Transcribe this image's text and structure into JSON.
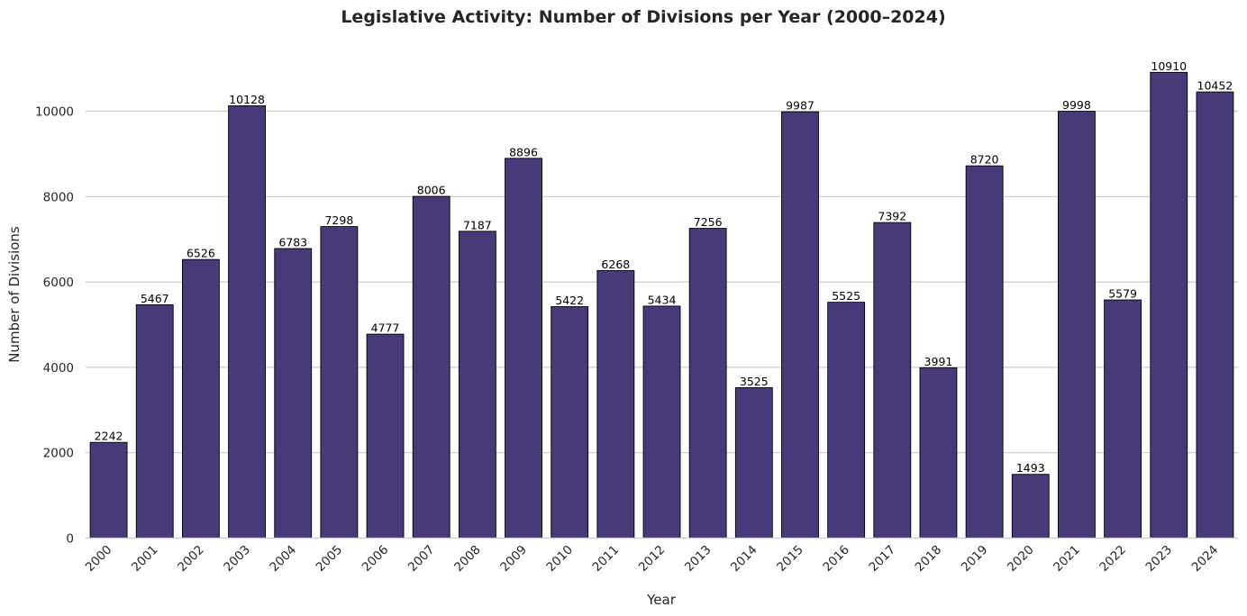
{
  "chart_data": {
    "type": "bar",
    "title": "Legislative Activity: Number of Divisions per Year (2000–2024)",
    "xlabel": "Year",
    "ylabel": "Number of Divisions",
    "categories": [
      "2000",
      "2001",
      "2002",
      "2003",
      "2004",
      "2005",
      "2006",
      "2007",
      "2008",
      "2009",
      "2010",
      "2011",
      "2012",
      "2013",
      "2014",
      "2015",
      "2016",
      "2017",
      "2018",
      "2019",
      "2020",
      "2021",
      "2022",
      "2023",
      "2024"
    ],
    "values": [
      2242,
      5467,
      6526,
      10128,
      6783,
      7298,
      4777,
      8006,
      7187,
      8896,
      5422,
      6268,
      5434,
      7256,
      3525,
      9987,
      5525,
      7392,
      3991,
      8720,
      1493,
      9998,
      5579,
      10910,
      10452
    ],
    "yticks": [
      0,
      2000,
      4000,
      6000,
      8000,
      10000
    ],
    "ylim": [
      0,
      11455
    ],
    "grid": "horizontal",
    "data_labels": true,
    "colors": {
      "bar": "#483a78",
      "bar_edge": "#000000"
    }
  }
}
